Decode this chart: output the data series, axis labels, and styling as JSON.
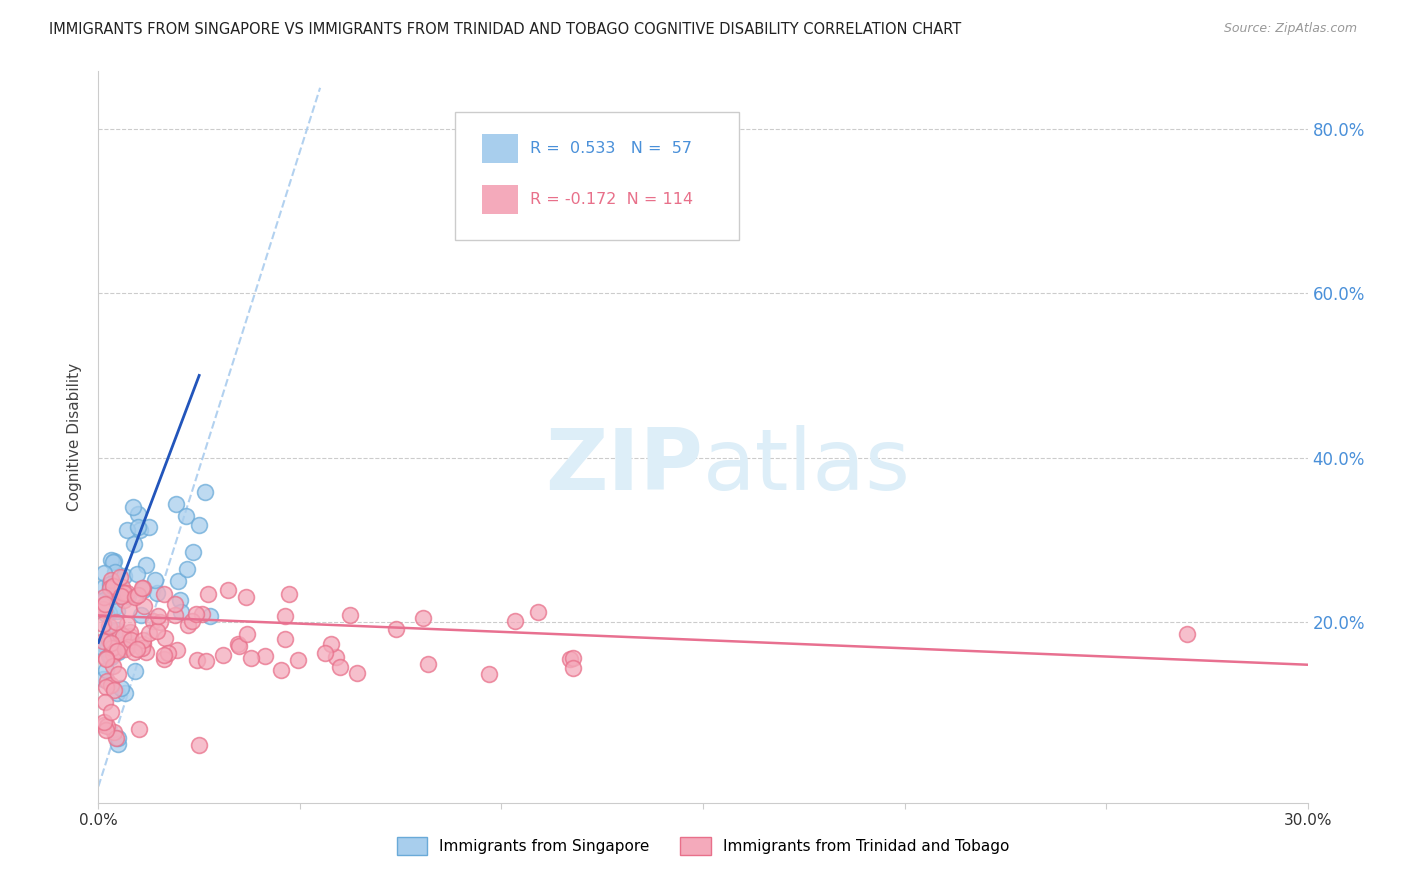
{
  "title": "IMMIGRANTS FROM SINGAPORE VS IMMIGRANTS FROM TRINIDAD AND TOBAGO COGNITIVE DISABILITY CORRELATION CHART",
  "source": "Source: ZipAtlas.com",
  "ylabel": "Cognitive Disability",
  "xlim": [
    0.0,
    0.3
  ],
  "ylim": [
    -0.02,
    0.87
  ],
  "singapore_color": "#A8CEED",
  "singapore_edge": "#6AAAD8",
  "trinidad_color": "#F4AABB",
  "trinidad_edge": "#E8708A",
  "singapore_R": 0.533,
  "singapore_N": 57,
  "trinidad_R": -0.172,
  "trinidad_N": 114,
  "blue_line_color": "#2255BB",
  "pink_line_color": "#E87090",
  "dash_line_color": "#AACCEE",
  "grid_color": "#CCCCCC",
  "right_tick_color": "#4A90D9",
  "background_color": "#FFFFFF",
  "legend_text_blue": "#4A90D9",
  "legend_text_pink": "#E8708A",
  "blue_line_x0": 0.0,
  "blue_line_y0": 0.175,
  "blue_line_x1": 0.025,
  "blue_line_y1": 0.5,
  "pink_line_x0": 0.0,
  "pink_line_y0": 0.208,
  "pink_line_x1": 0.3,
  "pink_line_y1": 0.148,
  "dash_line_x0": 0.0,
  "dash_line_y0": 0.0,
  "dash_line_x1": 0.055,
  "dash_line_y1": 0.85
}
